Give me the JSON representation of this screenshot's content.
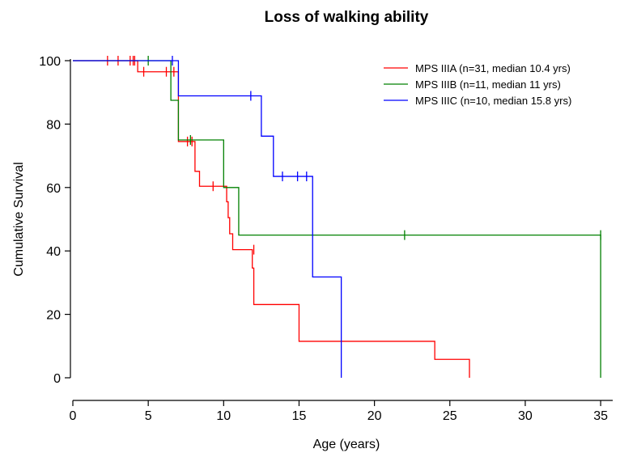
{
  "chart_data": {
    "type": "line",
    "title": "Loss of walking ability",
    "xlabel": "Age (years)",
    "ylabel": "Cumulative Survival",
    "xlim": [
      0,
      35.8
    ],
    "ylim": [
      0,
      100
    ],
    "xticks": [
      0,
      5,
      10,
      15,
      20,
      25,
      30,
      35
    ],
    "yticks": [
      0,
      20,
      40,
      60,
      80,
      100
    ],
    "grid": false,
    "legend_position": "top-right",
    "series": [
      {
        "name": "MPS IIIA (n=31, median 10.4 yrs)",
        "color": "#ff0000",
        "steps": [
          [
            0,
            100
          ],
          [
            4.3,
            96.5
          ],
          [
            6.9,
            96.5
          ],
          [
            7.0,
            74.5
          ],
          [
            8.0,
            74.5
          ],
          [
            8.1,
            65.1
          ],
          [
            8.4,
            60.4
          ],
          [
            10.1,
            60.4
          ],
          [
            10.2,
            55.5
          ],
          [
            10.3,
            50.5
          ],
          [
            10.4,
            45.4
          ],
          [
            10.6,
            40.4
          ],
          [
            11.8,
            40.4
          ],
          [
            11.9,
            34.6
          ],
          [
            12.0,
            23.1
          ],
          [
            15.0,
            11.5
          ],
          [
            24.0,
            5.8
          ],
          [
            26.3,
            0
          ]
        ],
        "censored": [
          [
            2.3,
            100
          ],
          [
            3.0,
            100
          ],
          [
            3.8,
            100
          ],
          [
            4.0,
            100
          ],
          [
            4.1,
            100
          ],
          [
            4.7,
            96.5
          ],
          [
            6.2,
            96.5
          ],
          [
            6.7,
            96.5
          ],
          [
            7.6,
            74.5
          ],
          [
            7.9,
            74.5
          ],
          [
            9.3,
            60.4
          ],
          [
            12.0,
            40.4
          ]
        ]
      },
      {
        "name": "MPS IIIB (n=11, median 11 yrs)",
        "color": "#008000",
        "steps": [
          [
            0,
            100
          ],
          [
            6.5,
            87.5
          ],
          [
            7.0,
            75.0
          ],
          [
            10.0,
            60.0
          ],
          [
            11.0,
            45.0
          ],
          [
            35.0,
            0
          ]
        ],
        "censored": [
          [
            5.0,
            100
          ],
          [
            7.8,
            75.0
          ],
          [
            22.0,
            45.0
          ],
          [
            35.0,
            45.0
          ]
        ]
      },
      {
        "name": "MPS IIIC (n=10, median 15.8 yrs)",
        "color": "#0000ff",
        "steps": [
          [
            0,
            100
          ],
          [
            7.0,
            88.9
          ],
          [
            12.5,
            76.2
          ],
          [
            13.3,
            63.5
          ],
          [
            15.9,
            31.8
          ],
          [
            17.8,
            0
          ]
        ],
        "censored": [
          [
            6.6,
            100
          ],
          [
            11.8,
            88.9
          ],
          [
            13.9,
            63.5
          ],
          [
            14.9,
            63.5
          ],
          [
            15.5,
            63.5
          ]
        ]
      }
    ]
  }
}
